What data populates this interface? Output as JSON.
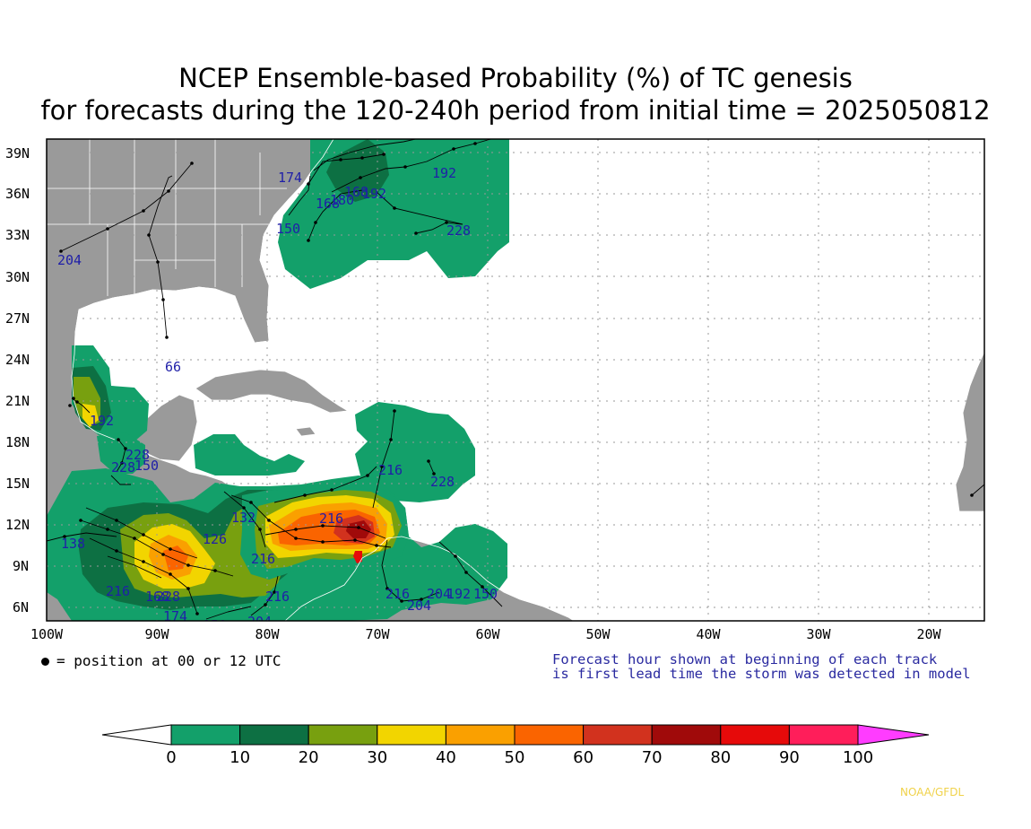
{
  "title": {
    "line1": "NCEP Ensemble-based Probability (%) of TC genesis",
    "line2": "for forecasts during the 120-240h period from initial time = 2025050812"
  },
  "axes": {
    "lon_labels": [
      "100W",
      "90W",
      "80W",
      "70W",
      "60W",
      "50W",
      "40W",
      "30W",
      "20W"
    ],
    "lat_labels": [
      "6N",
      "9N",
      "12N",
      "15N",
      "18N",
      "21N",
      "24N",
      "27N",
      "30N",
      "33N",
      "36N",
      "39N"
    ]
  },
  "legend": {
    "dot_note": "= position at 00 or 12 UTC",
    "forecast_note_line1": "Forecast hour shown at beginning of each track",
    "forecast_note_line2": "is first lead time the storm was detected in model"
  },
  "colorbar": {
    "labels": [
      "0",
      "10",
      "20",
      "30",
      "40",
      "50",
      "60",
      "70",
      "80",
      "90",
      "100"
    ],
    "colors": [
      "#13a06a",
      "#0d7043",
      "#78a00f",
      "#f2d500",
      "#faa000",
      "#fa6400",
      "#d2321e",
      "#a00a0a",
      "#e60a0a",
      "#ff1e5a",
      "#ff3cff"
    ]
  },
  "map_colors": {
    "land": "#9a9a9a",
    "ocean": "#ffffff",
    "track_label": "#1f1fa8"
  },
  "track_labels": [
    "204",
    "174",
    "168",
    "180",
    "168",
    "192",
    "192",
    "150",
    "228",
    "66",
    "192",
    "228",
    "228",
    "150",
    "216",
    "228",
    "216",
    "138",
    "216",
    "168",
    "228",
    "174",
    "150",
    "204",
    "216",
    "204",
    "204",
    "150",
    "216",
    "126",
    "132",
    "216",
    "192"
  ],
  "credit": "NOAA/GFDL"
}
